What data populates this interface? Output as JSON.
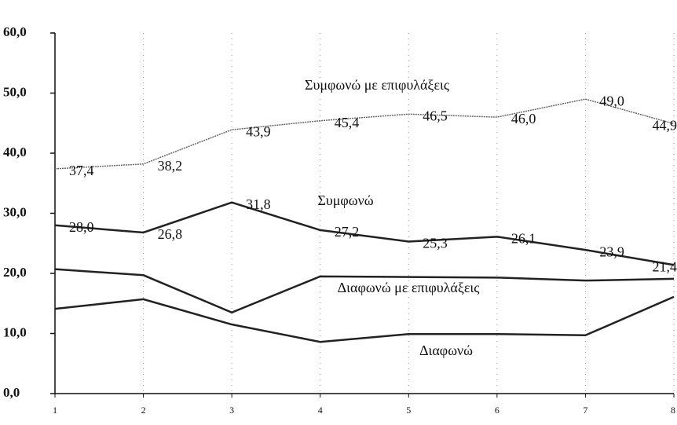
{
  "chart_data": {
    "type": "line",
    "x": [
      1,
      2,
      3,
      4,
      5,
      6,
      7,
      8
    ],
    "xlim": [
      1,
      8
    ],
    "xticks": [
      1,
      2,
      3,
      4,
      5,
      6,
      7,
      8
    ],
    "ylim": [
      0,
      60
    ],
    "yticks": [
      {
        "value": 0,
        "label": "0,0"
      },
      {
        "value": 10,
        "label": "10,0"
      },
      {
        "value": 20,
        "label": "20,0"
      },
      {
        "value": 30,
        "label": "30,0"
      },
      {
        "value": 40,
        "label": "40,0"
      },
      {
        "value": 50,
        "label": "50,0"
      },
      {
        "value": 60,
        "label": "60,0"
      }
    ],
    "grid": true,
    "series": [
      {
        "name": "Συμφωνώ με επιφυλάξεις",
        "color": "#666666",
        "values": [
          37.4,
          38.2,
          43.9,
          45.4,
          46.5,
          46.0,
          49.0,
          44.9
        ],
        "value_labels": [
          "37,4",
          "38,2",
          "43,9",
          "45,4",
          "46,5",
          "46,0",
          "49,0",
          "44,9"
        ]
      },
      {
        "name": "Συμφωνώ",
        "color": "#222222",
        "values": [
          28.0,
          26.8,
          31.8,
          27.2,
          25.3,
          26.1,
          23.9,
          21.4
        ],
        "value_labels": [
          "28,0",
          "26,8",
          "31,8",
          "27,2",
          "25,3",
          "26,1",
          "23,9",
          "21,4"
        ]
      },
      {
        "name": "Διαφωνώ με επιφυλάξεις",
        "color": "#222222",
        "values": [
          20.7,
          19.7,
          13.5,
          19.5,
          19.4,
          19.3,
          18.8,
          19.1
        ]
      },
      {
        "name": "Διαφωνώ",
        "color": "#222222",
        "values": [
          14.1,
          15.7,
          11.5,
          8.6,
          9.9,
          9.9,
          9.7,
          16.1
        ]
      }
    ]
  }
}
